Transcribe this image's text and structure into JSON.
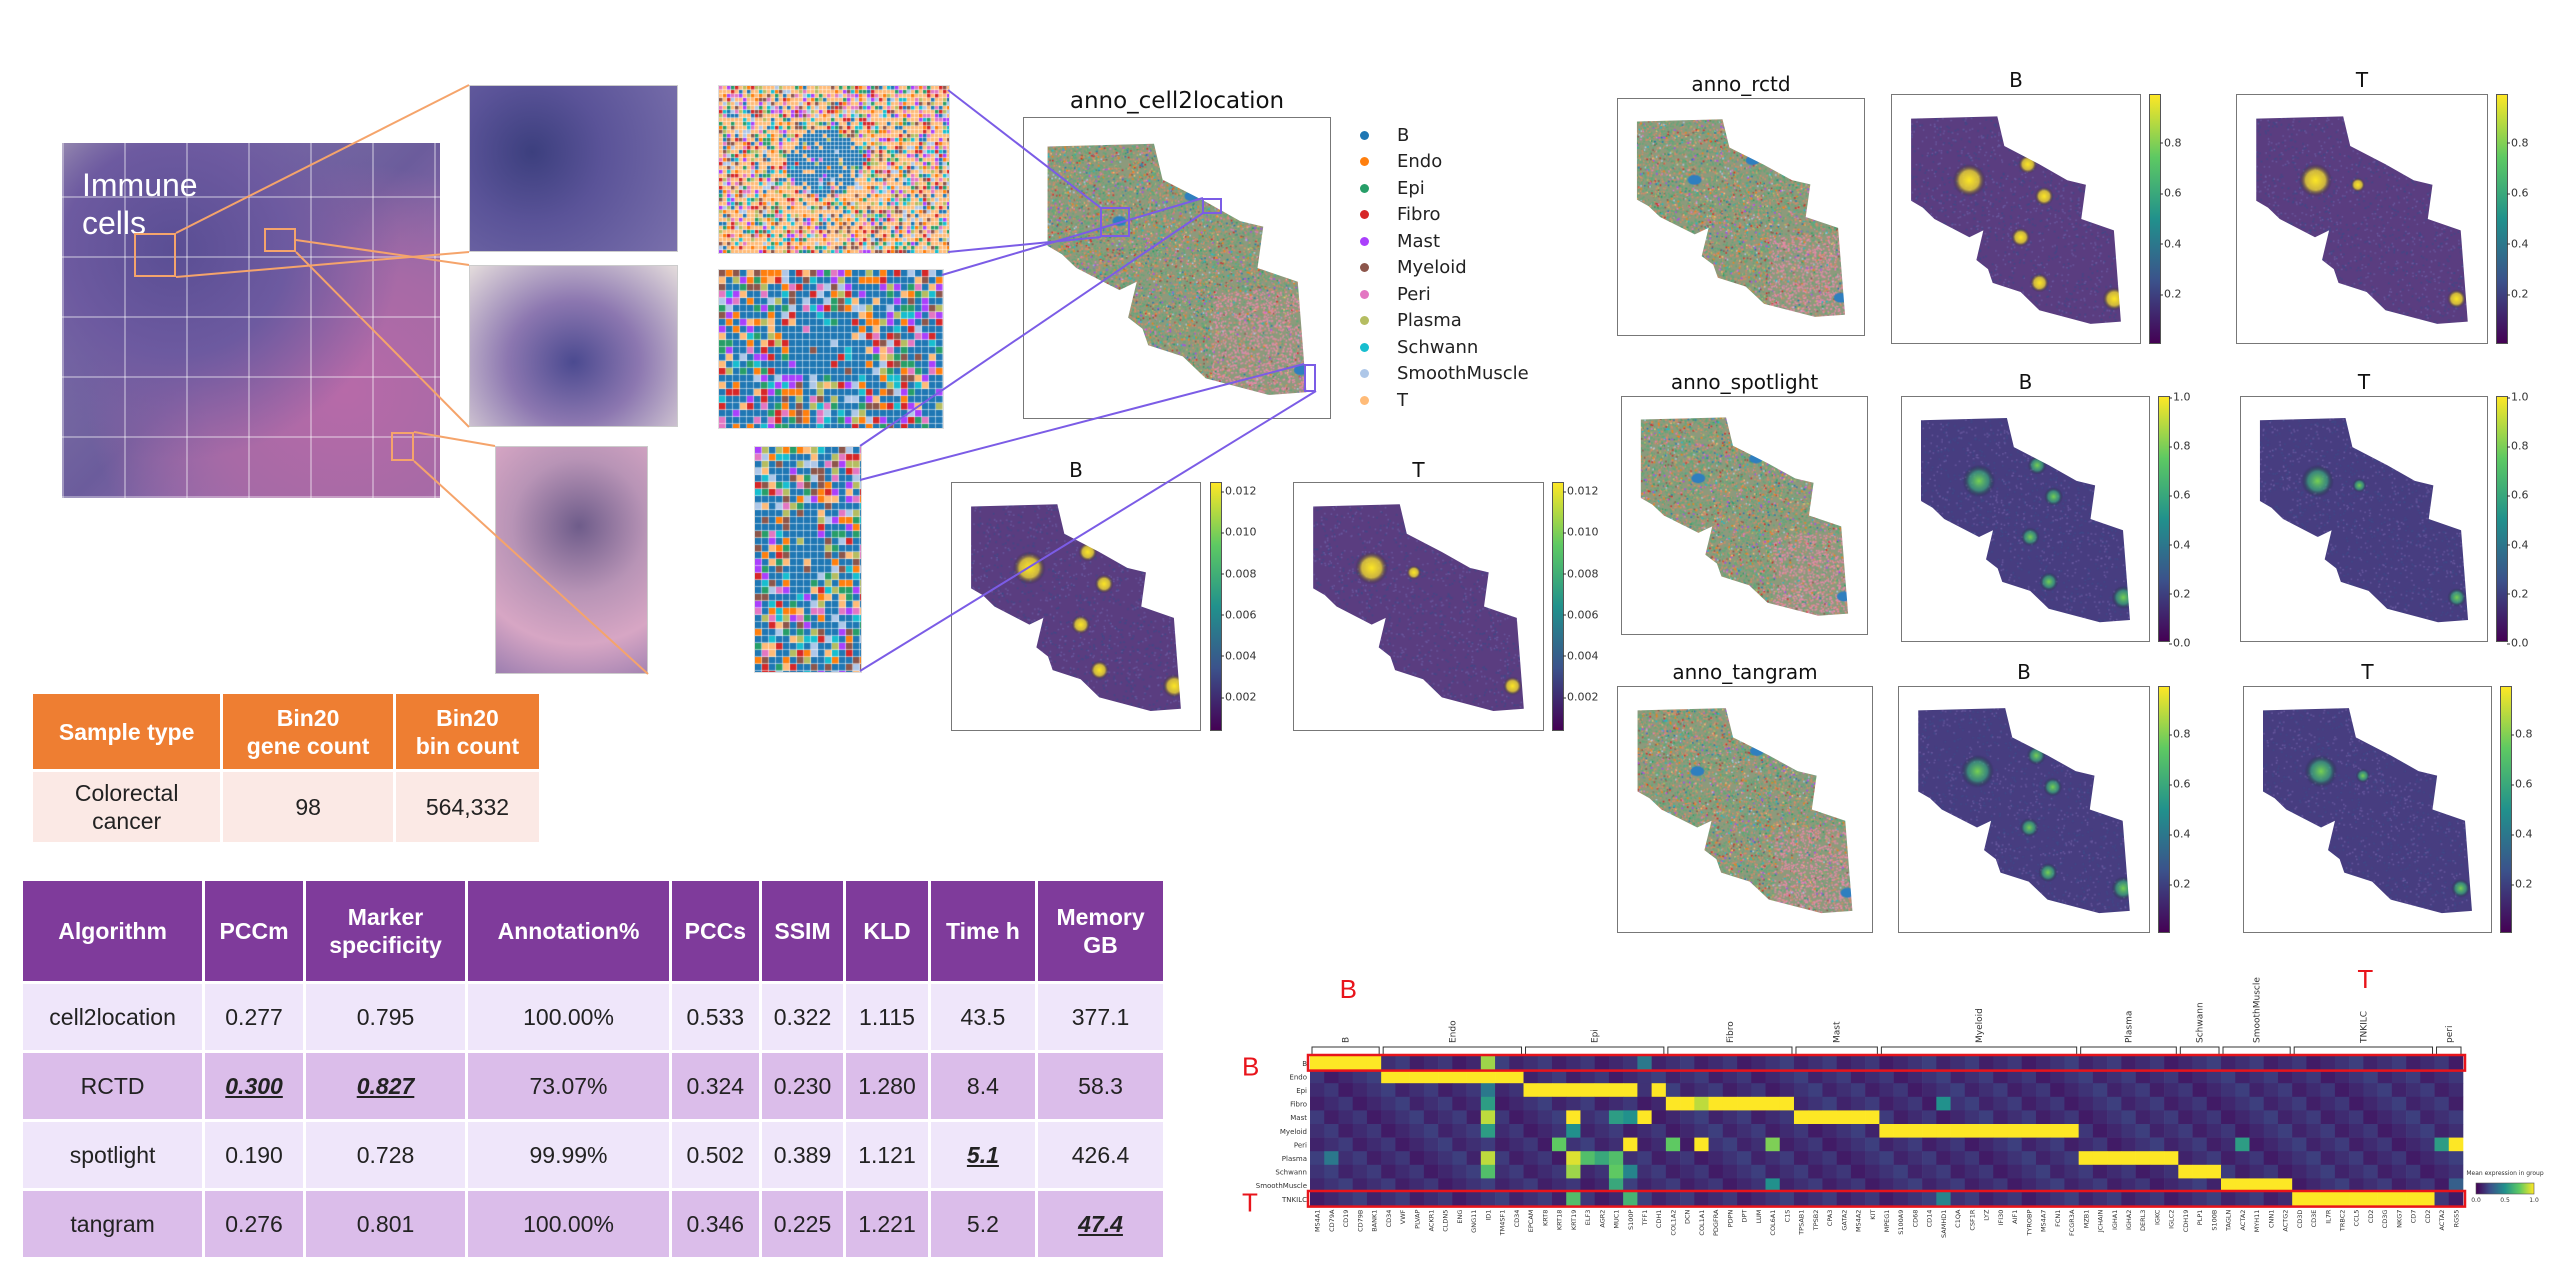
{
  "he_image": {
    "label": "Immune cells"
  },
  "cell2location": {
    "title": "anno_cell2location",
    "legend": [
      {
        "label": "B",
        "color": "#1f77b4"
      },
      {
        "label": "Endo",
        "color": "#ff7f0e"
      },
      {
        "label": "Epi",
        "color": "#279e68"
      },
      {
        "label": "Fibro",
        "color": "#d62728"
      },
      {
        "label": "Mast",
        "color": "#aa40fc"
      },
      {
        "label": "Myeloid",
        "color": "#8c564b"
      },
      {
        "label": "Peri",
        "color": "#e377c2"
      },
      {
        "label": "Plasma",
        "color": "#b5bd61"
      },
      {
        "label": "Schwann",
        "color": "#17becf"
      },
      {
        "label": "SmoothMuscle",
        "color": "#aec7e8"
      },
      {
        "label": "T",
        "color": "#ffbb78"
      }
    ],
    "b_title": "B",
    "t_title": "T",
    "colorbar_ticks": [
      "0.002",
      "0.004",
      "0.006",
      "0.008",
      "0.010",
      "0.012"
    ],
    "colorbar_range": [
      0.0003,
      0.0124
    ]
  },
  "methods": [
    {
      "title": "anno_rctd",
      "b_title": "B",
      "t_title": "T",
      "ticks": [
        "0.2",
        "0.4",
        "0.6",
        "0.8"
      ],
      "range": [
        0.0,
        0.99
      ]
    },
    {
      "title": "anno_spotlight",
      "b_title": "B",
      "t_title": "T",
      "ticks": [
        "0.0",
        "0.2",
        "0.4",
        "0.6",
        "0.8",
        "1.0"
      ],
      "range": [
        0.0,
        1.0
      ]
    },
    {
      "title": "anno_tangram",
      "b_title": "B",
      "t_title": "T",
      "ticks": [
        "0.2",
        "0.4",
        "0.6",
        "0.8"
      ],
      "range": [
        0.0,
        0.99
      ]
    }
  ],
  "sample_table": {
    "headers": [
      "Sample type",
      "Bin20\ngene count",
      "Bin20\nbin count"
    ],
    "rows": [
      [
        "Colorectal\ncancer",
        "98",
        "564,332"
      ]
    ]
  },
  "algo_table": {
    "headers": [
      "Algorithm",
      "PCCm",
      "Marker\nspecificity",
      "Annotation%",
      "PCCs",
      "SSIM",
      "KLD",
      "Time h",
      "Memory\nGB"
    ],
    "rows": [
      [
        "cell2location",
        "0.277",
        "0.795",
        "100.00%",
        "0.533",
        "0.322",
        "1.115",
        "43.5",
        "377.1"
      ],
      [
        "RCTD",
        "0.300",
        "0.827",
        "73.07%",
        "0.324",
        "0.230",
        "1.280",
        "8.4",
        "58.3"
      ],
      [
        "spotlight",
        "0.190",
        "0.728",
        "99.99%",
        "0.502",
        "0.389",
        "1.121",
        "5.1",
        "426.4"
      ],
      [
        "tangram",
        "0.276",
        "0.801",
        "100.00%",
        "0.346",
        "0.225",
        "1.221",
        "5.2",
        "47.4"
      ]
    ],
    "emphasized": [
      [
        1,
        1
      ],
      [
        1,
        2
      ],
      [
        2,
        7
      ],
      [
        3,
        8
      ]
    ]
  },
  "chart_data": {
    "type": "heatmap",
    "title": "",
    "rows": [
      "B",
      "Endo",
      "Epi",
      "Fibro",
      "Mast",
      "Myeloid",
      "Peri",
      "Plasma",
      "Schwann",
      "SmoothMuscle",
      "TNKILC"
    ],
    "groups": [
      {
        "name": "B",
        "genes": [
          "MS4A1",
          "CD79A",
          "CD19",
          "CD79B",
          "BANK1"
        ]
      },
      {
        "name": "Endo",
        "genes": [
          "CD34",
          "VWF",
          "PLVAP",
          "ACKR1",
          "CLDN5",
          "ENG",
          "GNG11",
          "ID1",
          "TM4SF1",
          "CD34"
        ]
      },
      {
        "name": "Epi",
        "genes": [
          "EPCAM",
          "KRT8",
          "KRT18",
          "KRT19",
          "ELF3",
          "AGR2",
          "MUC1",
          "S100P",
          "TFF1",
          "CDH1"
        ]
      },
      {
        "name": "Fibro",
        "genes": [
          "COL1A2",
          "DCN",
          "COL1A1",
          "PDGFRA",
          "PDPN",
          "DPT",
          "LUM",
          "COL6A1",
          "C1S"
        ]
      },
      {
        "name": "Mast",
        "genes": [
          "TPSAB1",
          "TPSB2",
          "CPA3",
          "GATA2",
          "MS4A2",
          "KIT"
        ]
      },
      {
        "name": "Myeloid",
        "genes": [
          "MPEG1",
          "S100A9",
          "CD68",
          "CD14",
          "SAMHD1",
          "C1QA",
          "CSF1R",
          "LYZ",
          "IFI30",
          "AIF1",
          "TYROBP",
          "MS4A7",
          "FCN1",
          "FCGR3A"
        ]
      },
      {
        "name": "Plasma",
        "genes": [
          "MZB1",
          "JCHAIN",
          "IGHA1",
          "IGHA2",
          "DERL3",
          "IGKC",
          "IGLC2"
        ]
      },
      {
        "name": "Schwann",
        "genes": [
          "CDH19",
          "PLP1",
          "S100B"
        ]
      },
      {
        "name": "SmoothMuscle",
        "genes": [
          "TAGLN",
          "ACTA2",
          "MYH11",
          "CNN1",
          "ACTG2"
        ]
      },
      {
        "name": "TNKILC",
        "genes": [
          "CD3D",
          "CD3E",
          "IL7R",
          "TRBC2",
          "CCL5",
          "CD2",
          "CD3G",
          "NKG7",
          "CD7",
          "CD2"
        ]
      },
      {
        "name": "peri",
        "genes": [
          "ACTA2",
          "RGS5"
        ]
      }
    ],
    "block_membership": {
      "B": "B",
      "Endo": "Endo",
      "Epi": "Epi",
      "Fibro": "Fibro",
      "Mast": "Mast",
      "Myeloid": "Myeloid",
      "Peri": "peri",
      "Plasma": "Plasma",
      "Schwann": "Schwann",
      "SmoothMuscle": "SmoothMuscle",
      "TNKILC": "TNKILC"
    },
    "in_group_value": 1.0,
    "background_value": 0.08,
    "notable_cells": [
      [
        "B",
        "ID1",
        0.85
      ],
      [
        "B",
        "TFF1",
        0.4
      ],
      [
        "Epi",
        "TFF1",
        0.15
      ],
      [
        "Epi",
        "ID1",
        0.4
      ],
      [
        "Fibro",
        "ID1",
        0.55
      ],
      [
        "Fibro",
        "SAMHD1",
        0.5
      ],
      [
        "Fibro",
        "COL1A1",
        0.9
      ],
      [
        "Mast",
        "ID1",
        0.9
      ],
      [
        "Mast",
        "KRT19",
        1.0
      ],
      [
        "Mast",
        "MUC1",
        0.55
      ],
      [
        "Mast",
        "S100P",
        0.5
      ],
      [
        "Mast",
        "TFF1",
        1.0
      ],
      [
        "Myeloid",
        "ID1",
        0.55
      ],
      [
        "Myeloid",
        "KRT19",
        0.5
      ],
      [
        "Peri",
        "KRT18",
        0.75
      ],
      [
        "Peri",
        "S100P",
        1.0
      ],
      [
        "Peri",
        "COL1A2",
        0.75
      ],
      [
        "Peri",
        "COL1A1",
        1.0
      ],
      [
        "Peri",
        "COL6A1",
        0.8
      ],
      [
        "Peri",
        "ACTA2",
        0.55
      ],
      [
        "Peri",
        "RGS5",
        1.0
      ],
      [
        "Plasma",
        "CD79A",
        0.4
      ],
      [
        "Plasma",
        "ID1",
        0.9
      ],
      [
        "Plasma",
        "KRT19",
        0.95
      ],
      [
        "Plasma",
        "ELF3",
        0.7
      ],
      [
        "Plasma",
        "AGR2",
        0.6
      ],
      [
        "Plasma",
        "MUC1",
        0.7
      ],
      [
        "Schwann",
        "ID1",
        0.7
      ],
      [
        "Schwann",
        "KRT19",
        0.85
      ],
      [
        "Schwann",
        "MUC1",
        0.75
      ],
      [
        "Schwann",
        "S100P",
        0.45
      ],
      [
        "SmoothMuscle",
        "COL6A1",
        0.5
      ],
      [
        "SmoothMuscle",
        "MUC1",
        0.6
      ],
      [
        "SmoothMuscle",
        "RGS5",
        0.3
      ],
      [
        "TNKILC",
        "KRT19",
        0.7
      ],
      [
        "TNKILC",
        "S100P",
        0.65
      ],
      [
        "TNKILC",
        "SAMHD1",
        0.45
      ]
    ],
    "highlighted_rows": [
      "B",
      "TNKILC"
    ],
    "highlight_labels": {
      "B": "B",
      "TNKILC": "T"
    },
    "colorbar": {
      "label": "Mean expression\nin group",
      "ticks": [
        "0.0",
        "0.5",
        "1.0"
      ],
      "range": [
        0,
        1
      ]
    },
    "colormap": "viridis"
  }
}
